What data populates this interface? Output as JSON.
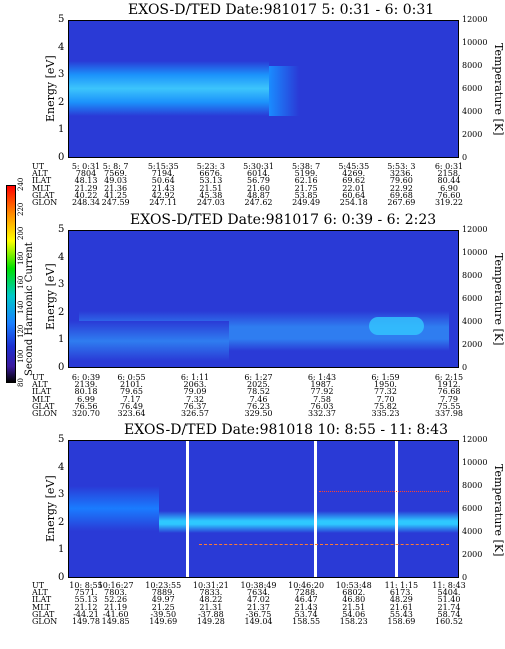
{
  "chart_data": [
    {
      "type": "heatmap",
      "title_prefix": "EXOS-D/TED",
      "title": "EXOS-D/TED   Date:981017  5: 0:31 - 6: 0:31",
      "ylabel": "Energy [eV]",
      "ylabel_right": "Temperature [K]",
      "ylim": [
        0,
        5
      ],
      "ylim_right": [
        0,
        12000
      ],
      "yticks": [
        "0",
        "1",
        "2",
        "3",
        "4",
        "5"
      ],
      "yticks_right": [
        "0",
        "2000",
        "4000",
        "6000",
        "8000",
        "10000",
        "12000"
      ],
      "ephemeris_labels": [
        "UT",
        "ALT",
        "ILAT",
        "MLT",
        "GLAT",
        "GLON"
      ],
      "ephemeris": [
        [
          "5: 0:31",
          "7804",
          "48.13",
          "21.29",
          "40.22",
          "248.34"
        ],
        [
          "5: 8: 7",
          "7569.",
          "49.03",
          "21.36",
          "41.25",
          "247.59"
        ],
        [
          "5:15:35",
          "7194.",
          "50.64",
          "21.43",
          "42.92",
          "247.11"
        ],
        [
          "5:23: 3",
          "6676.",
          "53.13",
          "21.51",
          "45.38",
          "247.03"
        ],
        [
          "5:30:31",
          "6014.",
          "56.79",
          "21.60",
          "48.87",
          "247.62"
        ],
        [
          "5:38: 7",
          "5199.",
          "62.16",
          "21.75",
          "53.85",
          "249.49"
        ],
        [
          "5:45:35",
          "4269.",
          "69.62",
          "22.01",
          "60.64",
          "254.18"
        ],
        [
          "5:53: 3",
          "3236.",
          "79.60",
          "22.92",
          "69.68",
          "267.69"
        ],
        [
          "6: 0:31",
          "2158.",
          "80.44",
          "6.90",
          "76.60",
          "319.22"
        ]
      ]
    },
    {
      "type": "heatmap",
      "title": "EXOS-D/TED   Date:981017  6: 0:39 - 6: 2:23",
      "ylabel": "Energy [eV]",
      "ylabel_right": "Temperature [K]",
      "ylim": [
        0,
        5
      ],
      "ylim_right": [
        0,
        12000
      ],
      "yticks": [
        "0",
        "1",
        "2",
        "3",
        "4",
        "5"
      ],
      "yticks_right": [
        "0",
        "2000",
        "4000",
        "6000",
        "8000",
        "10000",
        "12000"
      ],
      "colorbar": {
        "label": "Second Harmonic Current",
        "ticks": [
          "80",
          "100",
          "120",
          "140",
          "160",
          "180",
          "200",
          "220",
          "240"
        ]
      },
      "ephemeris_labels": [
        "UT",
        "ALT",
        "ILAT",
        "MLT",
        "GLAT",
        "GLON"
      ],
      "ephemeris": [
        [
          "6: 0:39",
          "2139.",
          "80.18",
          "6.99",
          "76.56",
          "320.70"
        ],
        [
          "6: 0:55",
          "2101.",
          "79.65",
          "7.17",
          "76.49",
          "323.64"
        ],
        [
          "6: 1:11",
          "2063.",
          "79.09",
          "7.32",
          "76.37",
          "326.57"
        ],
        [
          "6: 1:27",
          "2025.",
          "78.52",
          "7.46",
          "76.23",
          "329.50"
        ],
        [
          "6: 1:43",
          "1987.",
          "77.92",
          "7.58",
          "76.03",
          "332.37"
        ],
        [
          "6: 1:59",
          "1950.",
          "77.32",
          "7.70",
          "75.82",
          "335.23"
        ],
        [
          "6: 2:15",
          "1912.",
          "76.68",
          "7.79",
          "75.55",
          "337.98"
        ]
      ]
    },
    {
      "type": "heatmap",
      "title": "EXOS-D/TED   Date:981018  10: 8:55 - 11: 8:43",
      "ylabel": "Energy [eV]",
      "ylabel_right": "Temperature [K]",
      "ylim": [
        0,
        5
      ],
      "ylim_right": [
        0,
        12000
      ],
      "yticks": [
        "0",
        "1",
        "2",
        "3",
        "4",
        "5"
      ],
      "yticks_right": [
        "0",
        "2000",
        "4000",
        "6000",
        "8000",
        "10000",
        "12000"
      ],
      "ephemeris_labels": [
        "UT",
        "ALT",
        "ILAT",
        "MLT",
        "GLAT",
        "GLON"
      ],
      "ephemeris": [
        [
          "10: 8:55",
          "7571.",
          "55.13",
          "21.12",
          "-44.21",
          "149.78"
        ],
        [
          "10:16:27",
          "7803.",
          "52.26",
          "21.19",
          "-41.60",
          "149.85"
        ],
        [
          "10:23:55",
          "7889.",
          "49.97",
          "21.25",
          "-39.50",
          "149.69"
        ],
        [
          "10:31:21",
          "7833.",
          "48.22",
          "21.31",
          "-37.88",
          "149.28"
        ],
        [
          "10:38:49",
          "7634.",
          "47.02",
          "21.37",
          "-36.75",
          "149.04"
        ],
        [
          "10:46:20",
          "7288.",
          "46.47",
          "21.43",
          "53.74",
          "158.55"
        ],
        [
          "10:53:48",
          "6802.",
          "46.80",
          "21.51",
          "54.06",
          "158.23"
        ],
        [
          "11: 1:15",
          "6173.",
          "48.29",
          "21.61",
          "55.43",
          "158.69"
        ],
        [
          "11: 8:43",
          "5404.",
          "51.40",
          "21.74",
          "58.74",
          "160.52"
        ]
      ]
    }
  ]
}
